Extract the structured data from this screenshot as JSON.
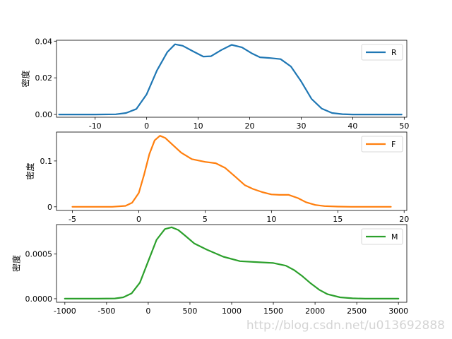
{
  "chart_data": [
    {
      "type": "line",
      "series": [
        {
          "name": "R",
          "color": "#1f77b4",
          "x": [
            -17,
            -10,
            -6,
            -4,
            -2,
            0,
            2,
            4,
            5.5,
            7,
            9,
            11,
            12.5,
            14.5,
            16.5,
            18.5,
            20.5,
            22,
            24,
            26,
            28,
            30,
            32,
            34,
            36,
            38,
            40,
            45,
            49.5
          ],
          "y": [
            0,
            0,
            0.0001,
            0.0008,
            0.003,
            0.011,
            0.024,
            0.034,
            0.0383,
            0.0375,
            0.0345,
            0.0316,
            0.0318,
            0.0352,
            0.038,
            0.0366,
            0.0332,
            0.0312,
            0.0308,
            0.0302,
            0.0262,
            0.018,
            0.0085,
            0.0032,
            0.0008,
            0.0002,
            0,
            0,
            0
          ]
        }
      ],
      "xlim": [
        -17.5,
        50.5
      ],
      "ylim": [
        -0.0015,
        0.0405
      ],
      "xticks": [
        -10,
        0,
        10,
        20,
        30,
        40,
        50
      ],
      "yticks": [
        0.0,
        0.02,
        0.04
      ],
      "ytick_labels": [
        "0.00",
        "0.02",
        "0.04"
      ],
      "ylabel": "密度",
      "legend": "top-right"
    },
    {
      "type": "line",
      "series": [
        {
          "name": "F",
          "color": "#ff7f0e",
          "x": [
            -5,
            -2,
            -1,
            -0.5,
            0,
            0.4,
            0.8,
            1.2,
            1.6,
            2,
            2.6,
            3.2,
            4,
            5,
            5.8,
            6.5,
            7.3,
            8,
            8.6,
            9.3,
            10,
            10.6,
            11.3,
            12,
            12.6,
            13.3,
            14,
            15,
            16,
            19
          ],
          "y": [
            0,
            0,
            0.002,
            0.009,
            0.03,
            0.07,
            0.115,
            0.145,
            0.155,
            0.15,
            0.134,
            0.118,
            0.104,
            0.098,
            0.095,
            0.085,
            0.065,
            0.047,
            0.039,
            0.032,
            0.027,
            0.026,
            0.026,
            0.019,
            0.01,
            0.004,
            0.0015,
            0.0004,
            0,
            0
          ]
        }
      ],
      "xlim": [
        -6.2,
        20.2
      ],
      "ylim": [
        -0.008,
        0.163
      ],
      "xticks": [
        -5,
        0,
        5,
        10,
        15,
        20
      ],
      "yticks": [
        0,
        0.1
      ],
      "ytick_labels": [
        "0",
        "0.1"
      ],
      "ylabel": "密度",
      "legend": "top-right"
    },
    {
      "type": "line",
      "series": [
        {
          "name": "M",
          "color": "#2ca02c",
          "x": [
            -1000,
            -600,
            -400,
            -300,
            -200,
            -100,
            0,
            100,
            200,
            280,
            360,
            450,
            550,
            700,
            900,
            1100,
            1300,
            1500,
            1650,
            1750,
            1850,
            1950,
            2050,
            2150,
            2300,
            2450,
            2600,
            3000
          ],
          "y": [
            0,
            0,
            3e-06,
            1.5e-05,
            6e-05,
            0.00018,
            0.00042,
            0.00066,
            0.00078,
            0.0008,
            0.00077,
            0.0007,
            0.00062,
            0.00055,
            0.00047,
            0.00042,
            0.00041,
            0.0004,
            0.00037,
            0.00032,
            0.00025,
            0.00017,
            0.0001,
            5e-05,
            1.5e-05,
            4e-06,
            0,
            0
          ]
        }
      ],
      "xlim": [
        -1100,
        3100
      ],
      "ylim": [
        -4e-05,
        0.00083
      ],
      "xticks": [
        -1000,
        -500,
        0,
        500,
        1000,
        1500,
        2000,
        2500,
        3000
      ],
      "yticks": [
        0.0,
        0.0005
      ],
      "ytick_labels": [
        "0.0000",
        "0.0005"
      ],
      "ylabel": "密度",
      "legend": "top-right"
    }
  ],
  "watermark": "http://blog.csdn.net/u013692888"
}
